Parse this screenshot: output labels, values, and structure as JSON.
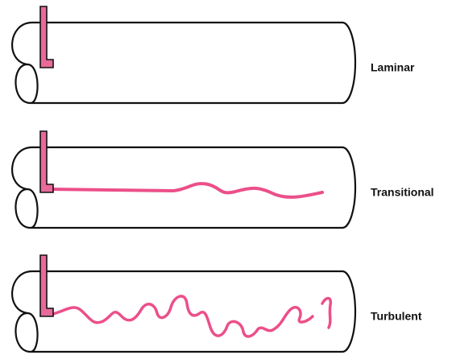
{
  "panels": [
    {
      "label": "Laminar"
    },
    {
      "label": "Transitional"
    },
    {
      "label": "Turbulent"
    }
  ]
}
